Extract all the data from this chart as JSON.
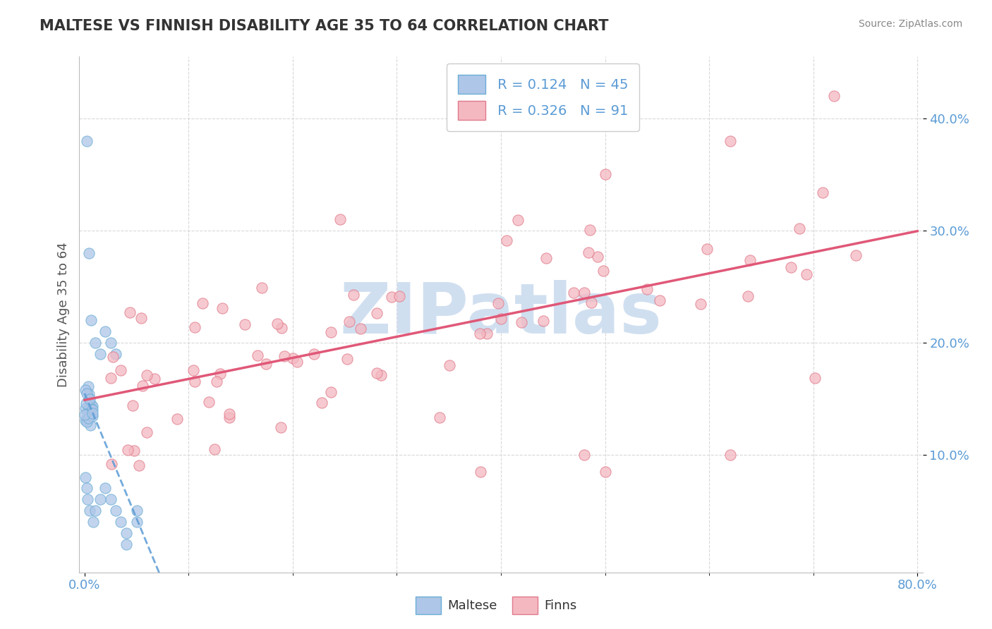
{
  "title": "MALTESE VS FINNISH DISABILITY AGE 35 TO 64 CORRELATION CHART",
  "source_text": "Source: ZipAtlas.com",
  "ylabel": "Disability Age 35 to 64",
  "xlim": [
    -0.005,
    0.805
  ],
  "ylim": [
    -0.005,
    0.455
  ],
  "grid_yticks": [
    0.1,
    0.2,
    0.3,
    0.4
  ],
  "grid_xticks": [
    0.1,
    0.2,
    0.3,
    0.4,
    0.5,
    0.6,
    0.7,
    0.8
  ],
  "ytick_vals": [
    0.1,
    0.2,
    0.3,
    0.4
  ],
  "ytick_labels": [
    "10.0%",
    "20.0%",
    "30.0%",
    "40.0%"
  ],
  "xtick_show": [
    0.0,
    0.8
  ],
  "xtick_labels": [
    "0.0%",
    "80.0%"
  ],
  "legend_r1": "R = 0.124",
  "legend_n1": "N = 45",
  "legend_r2": "R = 0.326",
  "legend_n2": "N = 91",
  "color_maltese_fill": "#aec6e8",
  "color_maltese_edge": "#6baed6",
  "color_finns_fill": "#f4b8c1",
  "color_finns_edge": "#e07a8a",
  "color_trend_blue": "#5b9bd5",
  "color_trend_pink": "#e05878",
  "watermark": "ZIPatlas",
  "watermark_color": "#d0dff0",
  "background_color": "#ffffff",
  "grid_color": "#d8d8d8",
  "grid_style": "--",
  "title_color": "#333333",
  "axis_label_color": "#555555",
  "tick_label_color": "#5b9bd5",
  "legend_text_color": "#5b9bd5",
  "bottom_legend_color": "#333333"
}
